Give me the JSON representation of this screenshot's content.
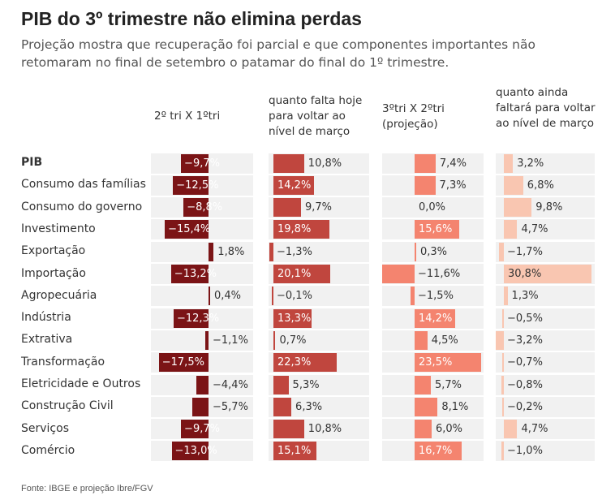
{
  "header": {
    "title": "PIB do 3º trimestre não elimina perdas",
    "subtitle": "Projeção mostra que recuperação foi parcial e que componentes importantes não retomaram no final de setembro o patamar do final do 1º trimestre."
  },
  "footer": {
    "source": "Fonte: IBGE e projeção Ibre/FGV"
  },
  "colors": {
    "col1": "#7b1416",
    "col2": "#c0463e",
    "col3": "#f4846f",
    "col4": "#f9c6b1",
    "panel_bg": "#f1f1f1"
  },
  "chart_data": {
    "type": "bar",
    "title": "PIB do 3º trimestre não elimina perdas",
    "unit": "%",
    "categories": [
      "PIB",
      "Consumo das famílias",
      "Consumo do governo",
      "Investimento",
      "Exportação",
      "Importação",
      "Agropecuária",
      "Indústria",
      "Extrativa",
      "Transformação",
      "Eletricidade e Outros",
      "Construção Civil",
      "Serviços",
      "Comércio"
    ],
    "series": [
      {
        "name": "2º tri X 1ºtri",
        "values": [
          -9.7,
          -12.5,
          -8.8,
          -15.4,
          1.8,
          -13.2,
          0.4,
          -12.3,
          -1.1,
          -17.5,
          -4.4,
          -5.7,
          -9.7,
          -13.0
        ],
        "labels": [
          "−9,7%",
          "−12,5%",
          "−8,8%",
          "−15,4%",
          "1,8%",
          "−13,2%",
          "0,4%",
          "−12,3%",
          "−1,1%",
          "−17,5%",
          "−4,4%",
          "−5,7%",
          "−9,7%",
          "−13,0%"
        ]
      },
      {
        "name": "quanto falta hoje para voltar ao nível de março",
        "values": [
          10.8,
          14.2,
          9.7,
          19.8,
          -1.3,
          20.1,
          -0.1,
          13.3,
          0.7,
          22.3,
          5.3,
          6.3,
          10.8,
          15.1
        ],
        "labels": [
          "10,8%",
          "14,2%",
          "9,7%",
          "19,8%",
          "−1,3%",
          "20,1%",
          "−0,1%",
          "13,3%",
          "0,7%",
          "22,3%",
          "5,3%",
          "6,3%",
          "10,8%",
          "15,1%"
        ]
      },
      {
        "name": "3ºtri X 2ºtri (projeção)",
        "values": [
          7.4,
          7.3,
          0.0,
          15.6,
          0.3,
          -11.6,
          -1.5,
          14.2,
          4.5,
          23.5,
          5.7,
          8.1,
          6.0,
          16.7
        ],
        "labels": [
          "7,4%",
          "7,3%",
          "0,0%",
          "15,6%",
          "0,3%",
          "−11,6%",
          "−1,5%",
          "14,2%",
          "4,5%",
          "23,5%",
          "5,7%",
          "8,1%",
          "6,0%",
          "16,7%"
        ]
      },
      {
        "name": "quanto ainda faltará para voltar ao nível de março",
        "values": [
          3.2,
          6.8,
          9.8,
          4.7,
          -1.7,
          30.8,
          1.3,
          -0.5,
          -3.2,
          -0.7,
          -0.8,
          -0.2,
          4.7,
          -1.0
        ],
        "labels": [
          "3,2%",
          "6,8%",
          "9,8%",
          "4,7%",
          "−1,7%",
          "30,8%",
          "1,3%",
          "−0,5%",
          "−3,2%",
          "−0,7%",
          "−0,8%",
          "−0,2%",
          "4,7%",
          "−1,0%"
        ]
      }
    ]
  }
}
